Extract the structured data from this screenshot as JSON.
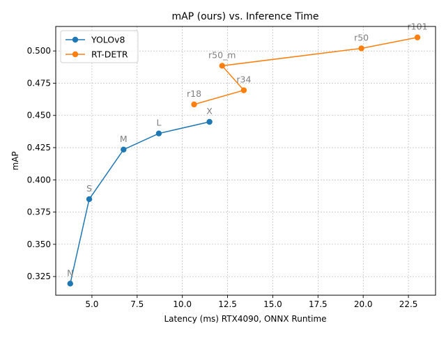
{
  "chart_data": {
    "type": "line",
    "title": "mAP (ours) vs. Inference Time",
    "xlabel": "Latency (ms) RTX4090, ONNX Runtime",
    "ylabel": "mAP",
    "xlim": [
      3.0,
      24.0
    ],
    "ylim": [
      0.3105,
      0.519
    ],
    "xticks": [
      5.0,
      7.5,
      10.0,
      12.5,
      15.0,
      17.5,
      20.0,
      22.5
    ],
    "xtick_labels": [
      "5.0",
      "7.5",
      "10.0",
      "12.5",
      "15.0",
      "17.5",
      "20.0",
      "22.5"
    ],
    "yticks": [
      0.325,
      0.35,
      0.375,
      0.4,
      0.425,
      0.45,
      0.475,
      0.5
    ],
    "ytick_labels": [
      "0.325",
      "0.350",
      "0.375",
      "0.400",
      "0.425",
      "0.450",
      "0.475",
      "0.500"
    ],
    "grid": true,
    "legend_position": "top-left",
    "series": [
      {
        "name": "YOLOv8",
        "color": "#1f77b4",
        "points": [
          {
            "x": 3.8,
            "y": 0.3195,
            "label": "N"
          },
          {
            "x": 4.85,
            "y": 0.385,
            "label": "S"
          },
          {
            "x": 6.75,
            "y": 0.4235,
            "label": "M"
          },
          {
            "x": 8.7,
            "y": 0.436,
            "label": "L"
          },
          {
            "x": 11.5,
            "y": 0.445,
            "label": "X"
          }
        ]
      },
      {
        "name": "RT-DETR",
        "color": "#ff7f0e",
        "points": [
          {
            "x": 10.65,
            "y": 0.4585,
            "label": "r18"
          },
          {
            "x": 13.4,
            "y": 0.4695,
            "label": "r34"
          },
          {
            "x": 12.2,
            "y": 0.4885,
            "label": "r50_m"
          },
          {
            "x": 19.9,
            "y": 0.502,
            "label": "r50"
          },
          {
            "x": 23.0,
            "y": 0.5105,
            "label": "r101"
          }
        ]
      }
    ],
    "annotation_color": "#808080"
  }
}
